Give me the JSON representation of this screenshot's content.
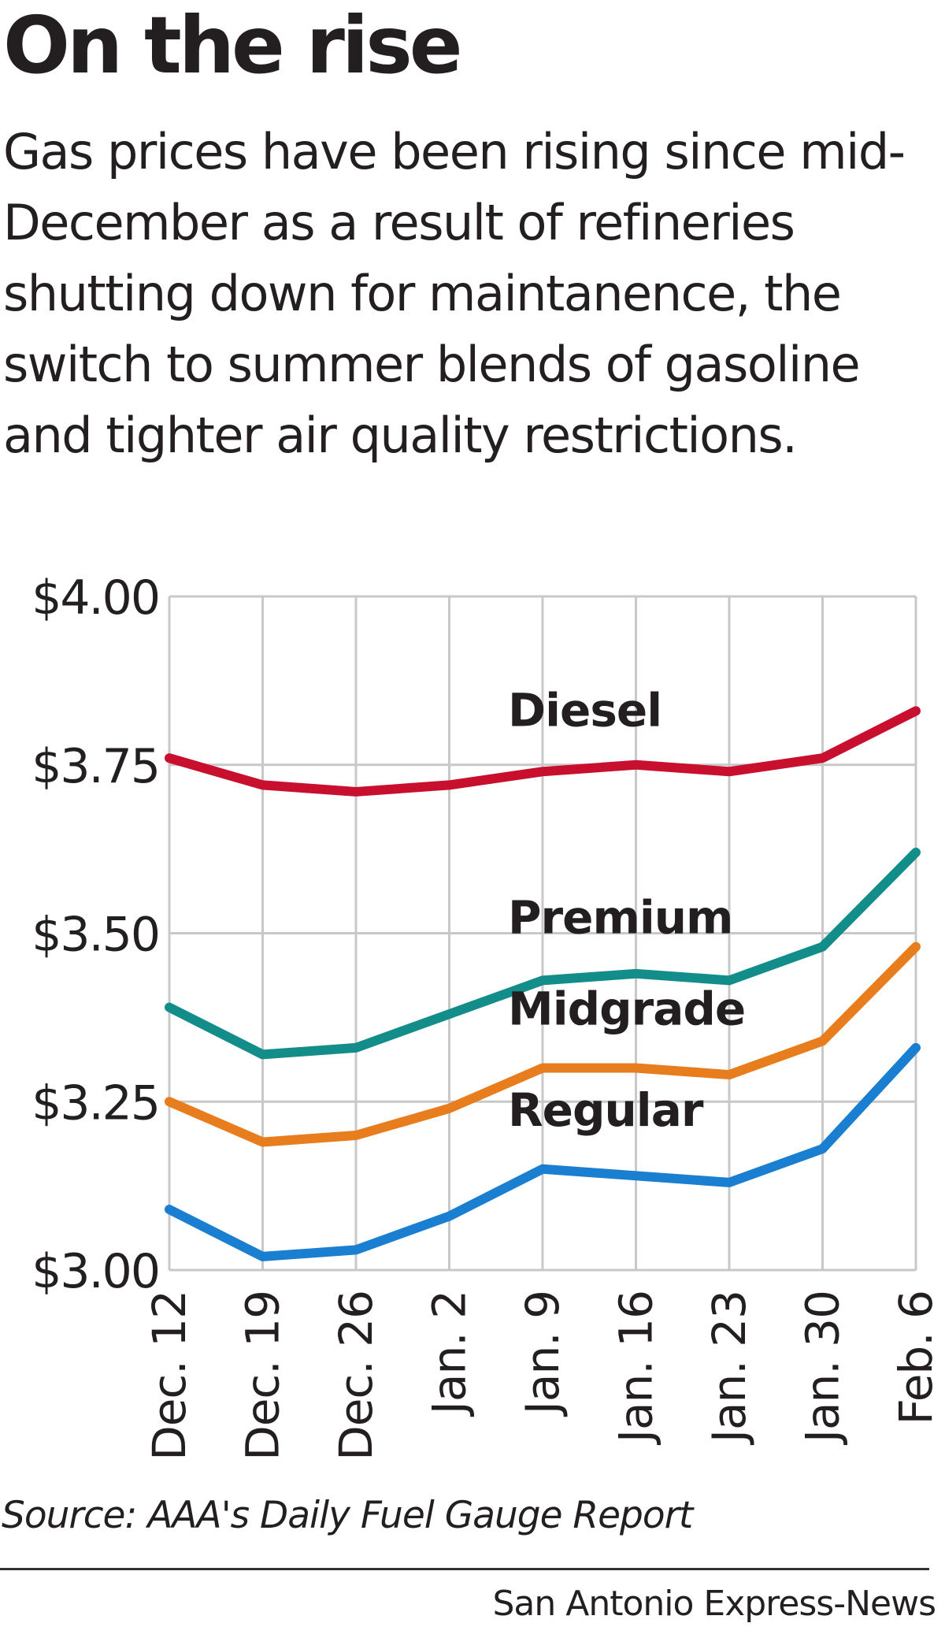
{
  "title": "On the rise",
  "subtitle": "Gas prices have been rising since mid-December as a result of refineries shutting down for maintanence, the switch to summer blends of gasoline and tighter air quality restrictions.",
  "source": "Source: AAA's Daily Fuel Gauge Report",
  "credit": "San Antonio Express-News",
  "chart_data": {
    "type": "line",
    "title": "",
    "xlabel": "",
    "ylabel": "",
    "categories": [
      "Dec. 12",
      "Dec. 19",
      "Dec. 26",
      "Jan. 2",
      "Jan. 9",
      "Jan. 16",
      "Jan. 23",
      "Jan. 30",
      "Feb. 6"
    ],
    "ylim": [
      3.0,
      4.0
    ],
    "yticks": [
      4.0,
      3.75,
      3.5,
      3.25,
      3.0
    ],
    "ytick_labels": [
      "$4.00",
      "$3.75",
      "$3.50",
      "$3.25",
      "$3.00"
    ],
    "grid": true,
    "series": [
      {
        "name": "Diesel",
        "color": "#c8102e",
        "values": [
          3.76,
          3.72,
          3.71,
          3.72,
          3.74,
          3.75,
          3.74,
          3.76,
          3.83
        ]
      },
      {
        "name": "Premium",
        "color": "#138d8a",
        "values": [
          3.39,
          3.32,
          3.33,
          3.38,
          3.43,
          3.44,
          3.43,
          3.48,
          3.62
        ]
      },
      {
        "name": "Midgrade",
        "color": "#e87d1e",
        "values": [
          3.25,
          3.19,
          3.2,
          3.24,
          3.3,
          3.3,
          3.29,
          3.34,
          3.48
        ]
      },
      {
        "name": "Regular",
        "color": "#1b7fd1",
        "values": [
          3.09,
          3.02,
          3.03,
          3.08,
          3.15,
          3.14,
          3.13,
          3.18,
          3.33
        ]
      }
    ]
  }
}
